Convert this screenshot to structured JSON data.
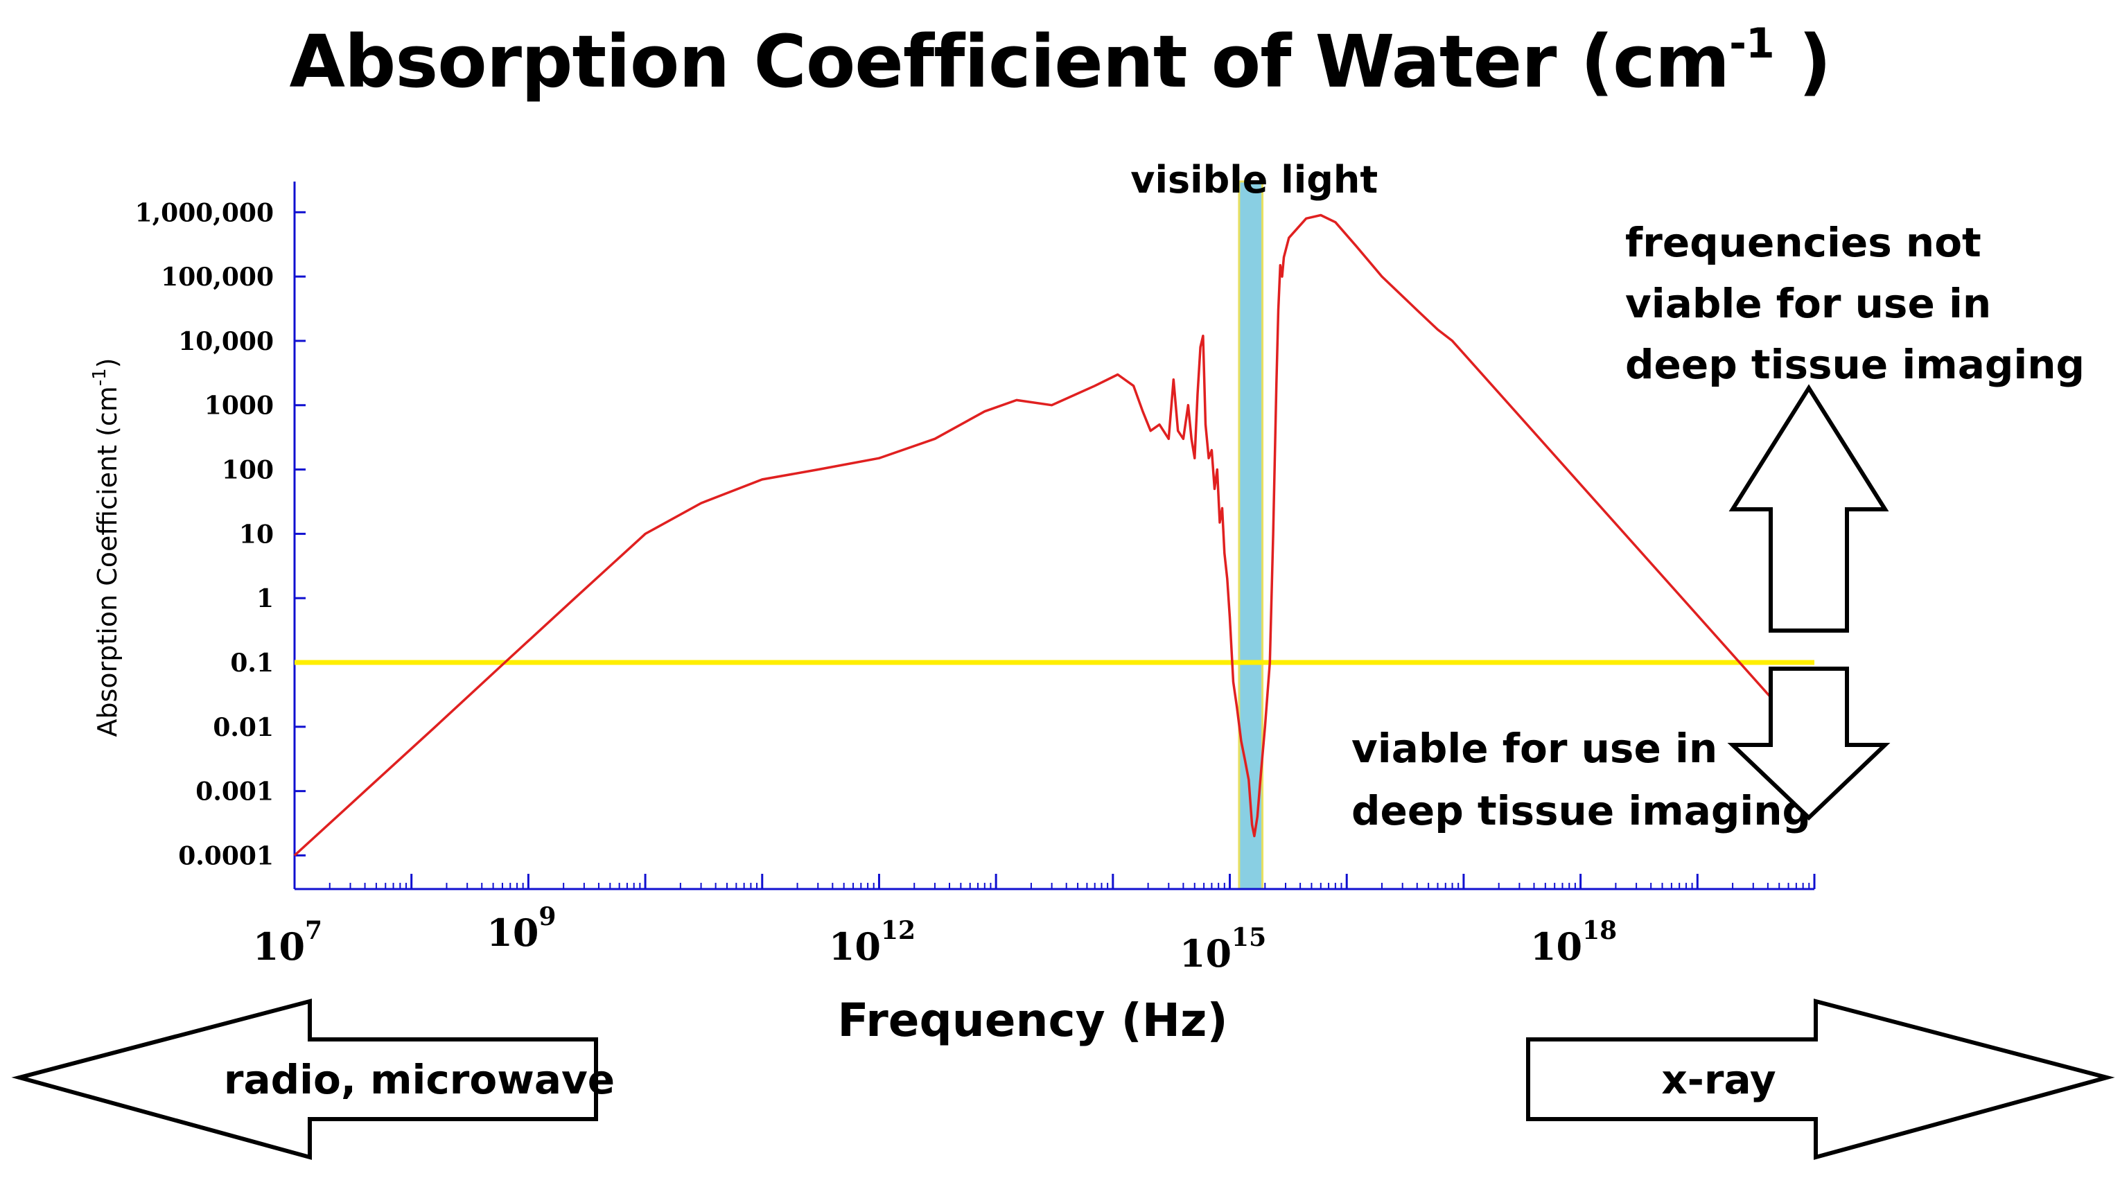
{
  "chart_data": {
    "type": "line",
    "title_text": "Absorption Coefficient of Water (cm",
    "title_sup": "-1",
    "title_close": " )",
    "xlabel": "Frequency (Hz)",
    "ylabel_text": "Absorption Coefficient (cm",
    "ylabel_sup": "-1",
    "ylabel_close": ")",
    "x_scale": "log",
    "y_scale": "log",
    "xlim": [
      10000000,
      1e+20
    ],
    "ylim": [
      3e-05,
      3000000
    ],
    "x_ticks": [
      {
        "base": "10",
        "exp": "7",
        "value": 10000000.0
      },
      {
        "base": "10",
        "exp": "9",
        "value": 1000000000.0
      },
      {
        "base": "10",
        "exp": "12",
        "value": 1000000000000.0
      },
      {
        "base": "10",
        "exp": "15",
        "value": 1000000000000000.0
      },
      {
        "base": "10",
        "exp": "18",
        "value": 1e+18
      }
    ],
    "y_ticks": [
      {
        "label": "1,000,000",
        "value": 1000000
      },
      {
        "label": "100,000",
        "value": 100000
      },
      {
        "label": "10,000",
        "value": 10000
      },
      {
        "label": "1000",
        "value": 1000
      },
      {
        "label": "100",
        "value": 100
      },
      {
        "label": "10",
        "value": 10
      },
      {
        "label": "1",
        "value": 1
      },
      {
        "label": "0.1",
        "value": 0.1
      },
      {
        "label": "0.01",
        "value": 0.01
      },
      {
        "label": "0.001",
        "value": 0.001
      },
      {
        "label": "0.0001",
        "value": 0.0001
      }
    ],
    "series": [
      {
        "color": "#e02020",
        "points": [
          [
            10000000.0,
            0.0001
          ],
          [
            40000000.0,
            0.001
          ],
          [
            160000000.0,
            0.01
          ],
          [
            630000000.0,
            0.1
          ],
          [
            2500000000.0,
            1
          ],
          [
            10000000000.0,
            10
          ],
          [
            30000000000.0,
            30
          ],
          [
            100000000000.0,
            70
          ],
          [
            300000000000.0,
            100
          ],
          [
            1000000000000.0,
            150
          ],
          [
            3000000000000.0,
            300
          ],
          [
            8000000000000.0,
            800
          ],
          [
            15000000000000.0,
            1200
          ],
          [
            30000000000000.0,
            1000
          ],
          [
            70000000000000.0,
            2000
          ],
          [
            110000000000000.0,
            3000
          ],
          [
            150000000000000.0,
            2000
          ],
          [
            180000000000000.0,
            800
          ],
          [
            210000000000000.0,
            400
          ],
          [
            250000000000000.0,
            500
          ],
          [
            300000000000000.0,
            300
          ],
          [
            330000000000000.0,
            2500
          ],
          [
            360000000000000.0,
            400
          ],
          [
            400000000000000.0,
            300
          ],
          [
            440000000000000.0,
            1000
          ],
          [
            470000000000000.0,
            300
          ],
          [
            500000000000000.0,
            150
          ],
          [
            530000000000000.0,
            1500
          ],
          [
            560000000000000.0,
            8000
          ],
          [
            590000000000000.0,
            12000
          ],
          [
            620000000000000.0,
            500
          ],
          [
            660000000000000.0,
            150
          ],
          [
            700000000000000.0,
            200
          ],
          [
            740000000000000.0,
            50
          ],
          [
            780000000000000.0,
            100
          ],
          [
            820000000000000.0,
            15
          ],
          [
            860000000000000.0,
            25
          ],
          [
            900000000000000.0,
            5
          ],
          [
            950000000000000.0,
            2
          ],
          [
            1000000000000000.0,
            0.5
          ],
          [
            1070000000000000.0,
            0.05
          ],
          [
            1150000000000000.0,
            0.02
          ],
          [
            1250000000000000.0,
            0.006
          ],
          [
            1350000000000000.0,
            0.003
          ],
          [
            1450000000000000.0,
            0.0015
          ],
          [
            1550000000000000.0,
            0.0003
          ],
          [
            1620000000000000.0,
            0.0002
          ],
          [
            1720000000000000.0,
            0.0004
          ],
          [
            1850000000000000.0,
            0.002
          ],
          [
            2000000000000000.0,
            0.01
          ],
          [
            2200000000000000.0,
            0.1
          ],
          [
            2350000000000000.0,
            10
          ],
          [
            2500000000000000.0,
            2000
          ],
          [
            2600000000000000.0,
            30000
          ],
          [
            2700000000000000.0,
            150000
          ],
          [
            2800000000000000.0,
            100000
          ],
          [
            2900000000000000.0,
            200000
          ],
          [
            3200000000000000.0,
            400000
          ],
          [
            4500000000000000.0,
            800000
          ],
          [
            6000000000000000.0,
            900000
          ],
          [
            8000000000000000.0,
            700000
          ],
          [
            1.2e+16,
            300000
          ],
          [
            2e+16,
            100000
          ],
          [
            4e+16,
            30000
          ],
          [
            6e+16,
            15000
          ],
          [
            8e+16,
            10000
          ],
          [
            1e+20,
            0.005
          ]
        ]
      }
    ],
    "bands": [
      {
        "label": "visible light",
        "x_start": 1200000000000000.0,
        "x_end": 1900000000000000.0,
        "color": "#89cfe3"
      }
    ],
    "threshold": {
      "value": 0.1,
      "color": "#ffee00"
    },
    "annotations": {
      "not_viable_lines": [
        "frequencies not",
        "viable for use in",
        "deep tissue imaging"
      ],
      "viable_lines": [
        "viable for use in",
        "deep tissue imaging"
      ],
      "left_arrow_label": "radio, microwave",
      "right_arrow_label": "x-ray"
    }
  }
}
